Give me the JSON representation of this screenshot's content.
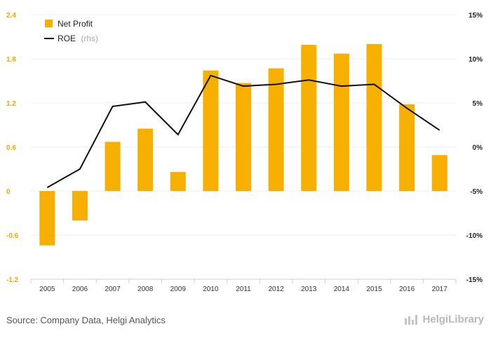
{
  "chart_data": {
    "type": "bar",
    "categories": [
      "2005",
      "2006",
      "2007",
      "2008",
      "2009",
      "2010",
      "2011",
      "2012",
      "2013",
      "2014",
      "2015",
      "2016",
      "2017"
    ],
    "series": [
      {
        "name": "Net Profit",
        "type": "bar",
        "axis": "left",
        "color": "#f8b000",
        "values": [
          -0.74,
          -0.4,
          0.67,
          0.85,
          0.26,
          1.64,
          1.47,
          1.67,
          1.99,
          1.87,
          2.0,
          1.18,
          0.49
        ]
      },
      {
        "name": "ROE",
        "name_suffix": "(rhs)",
        "type": "line",
        "axis": "right",
        "color": "#111111",
        "values": [
          -4.6,
          -2.5,
          4.6,
          5.1,
          1.4,
          8.1,
          6.9,
          7.1,
          7.6,
          6.9,
          7.1,
          4.4,
          1.9
        ]
      }
    ],
    "y_left": {
      "min": -1.2,
      "max": 2.4,
      "ticks": [
        "-1.2",
        "-0.6",
        "0",
        "0.6",
        "1.2",
        "1.8",
        "2.4"
      ]
    },
    "y_right": {
      "min": -15,
      "max": 15,
      "ticks": [
        "-15%",
        "-10%",
        "-5%",
        "0%",
        "5%",
        "10%",
        "15%"
      ]
    },
    "grid": true,
    "legend": "top-left"
  },
  "footer": {
    "source": "Source: Company Data, Helgi Analytics",
    "brand": "HelgiLibrary"
  }
}
